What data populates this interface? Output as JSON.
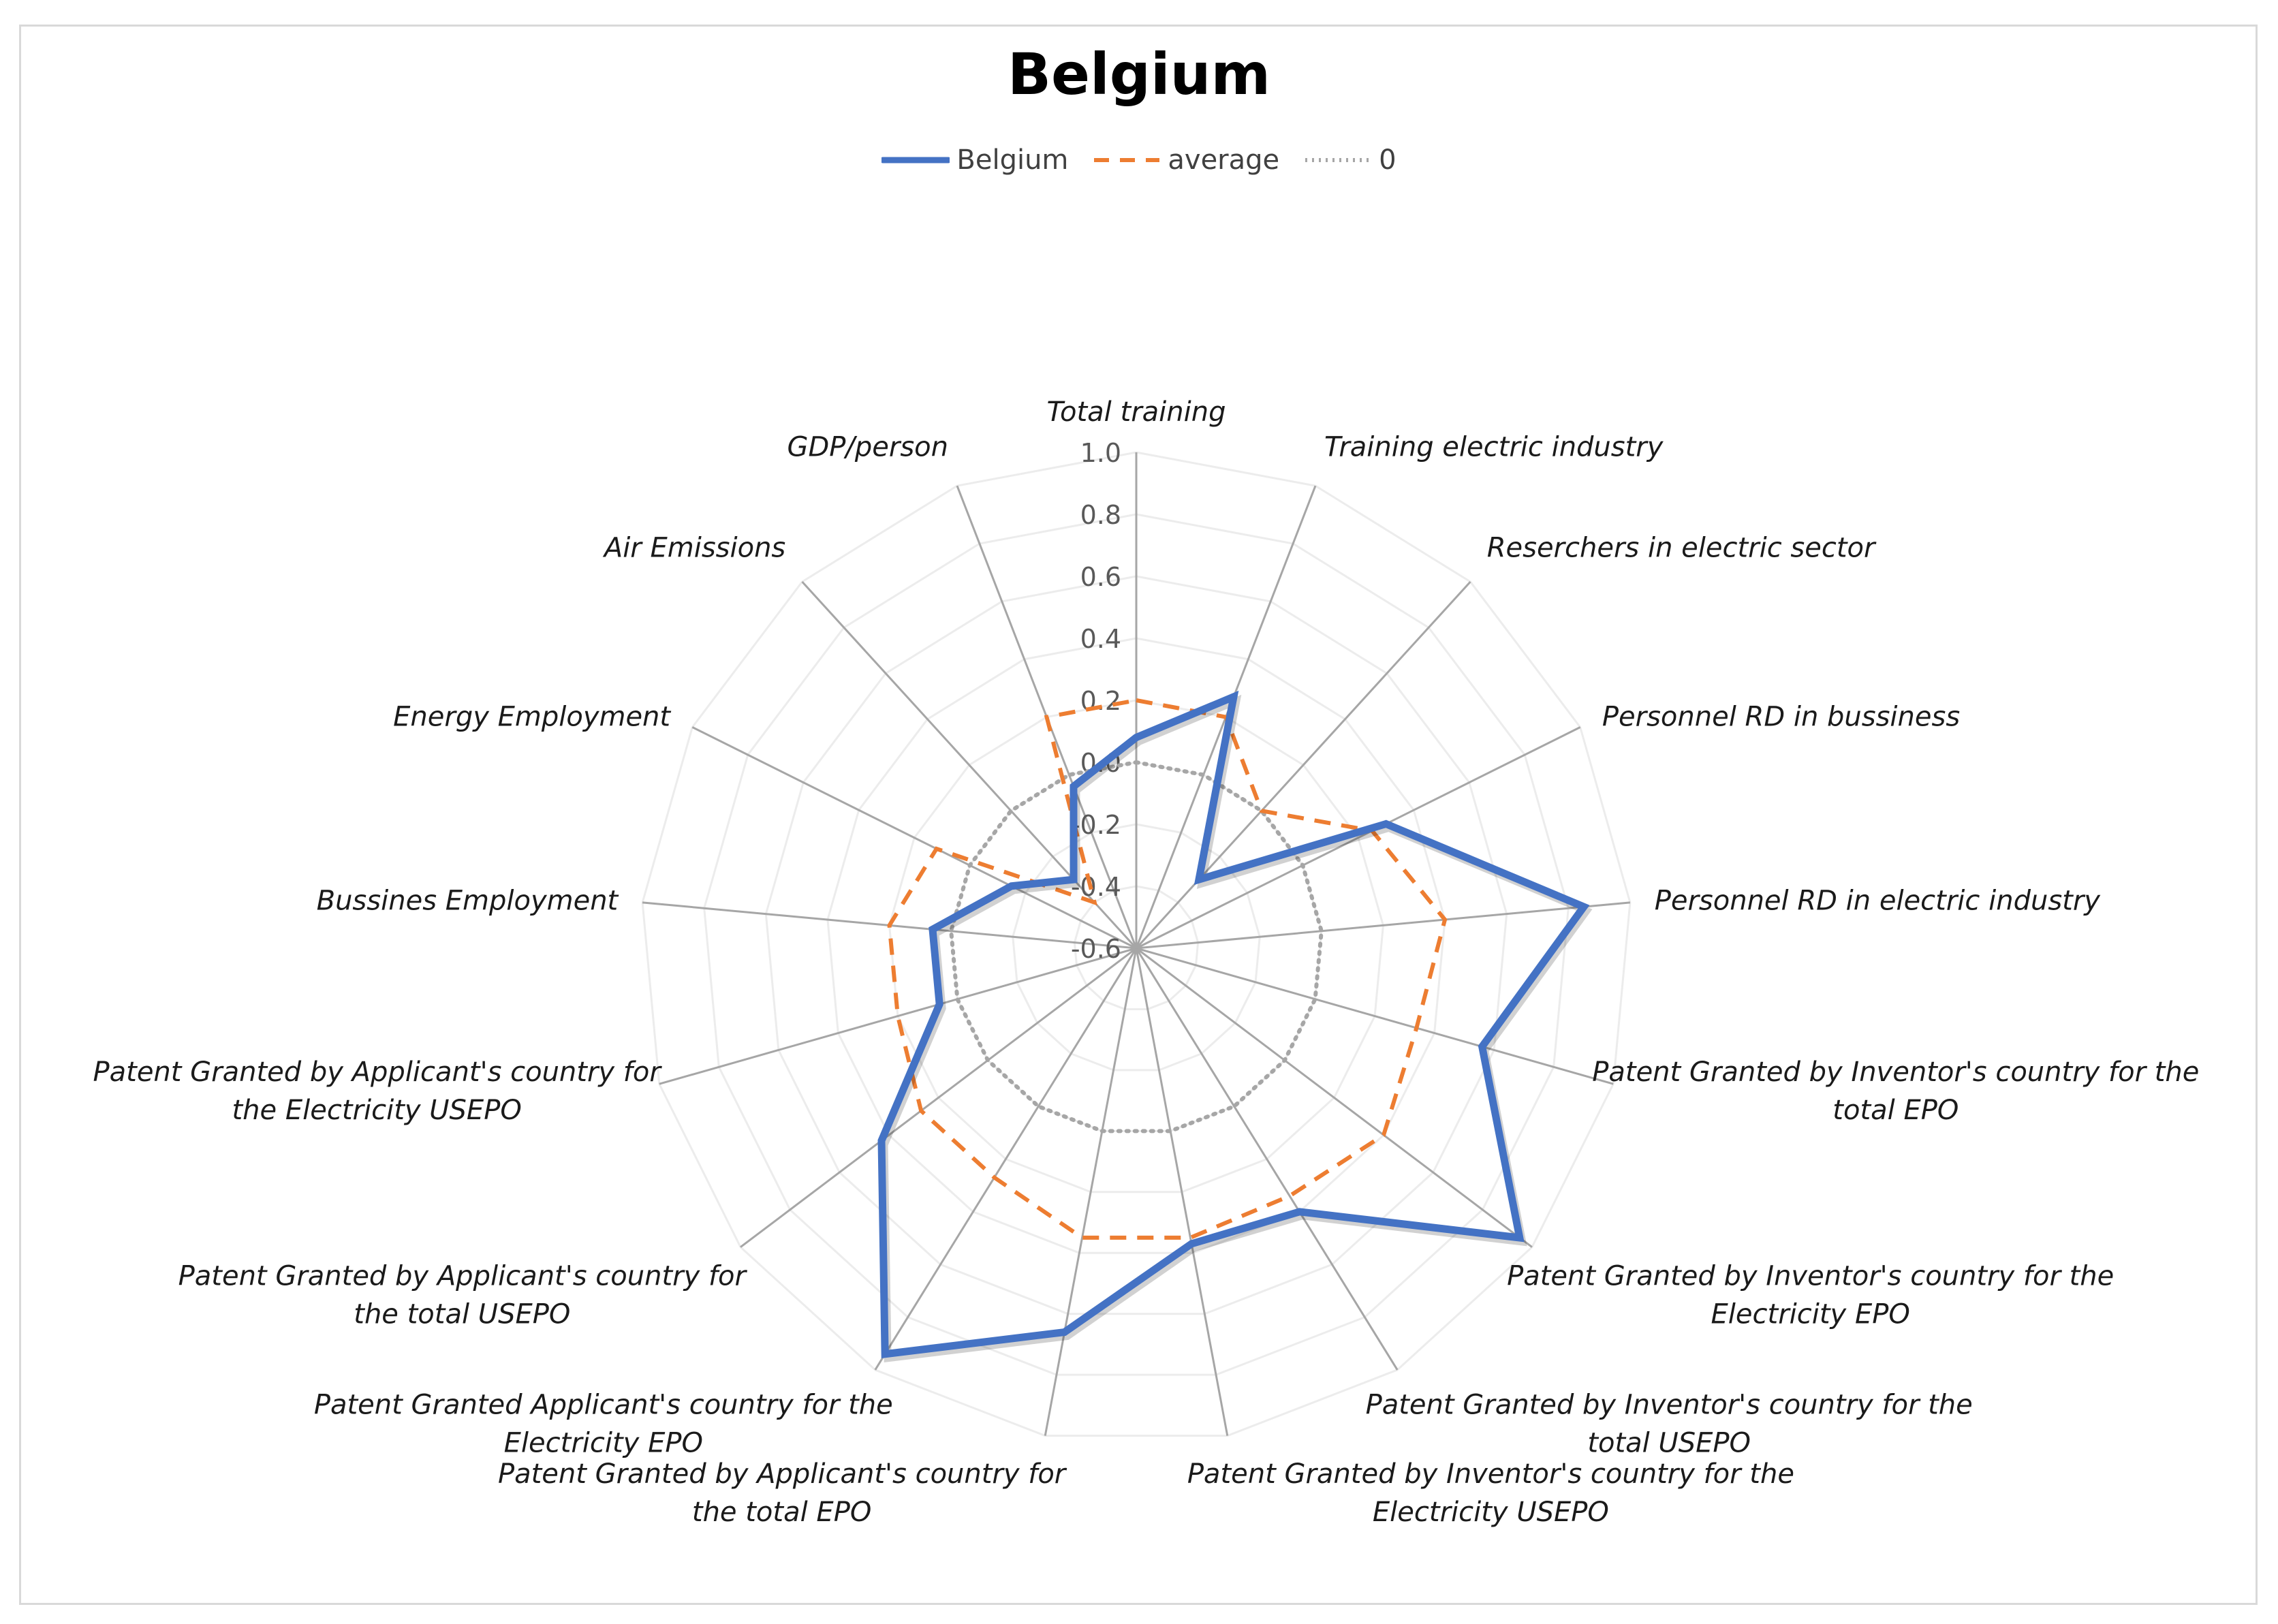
{
  "chart_data": {
    "type": "radar",
    "title": "Belgium",
    "categories": [
      [
        "Total training"
      ],
      [
        "Training electric industry"
      ],
      [
        "Reserchers in electric sector"
      ],
      [
        "Personnel RD in bussiness"
      ],
      [
        "Personnel RD in electric industry"
      ],
      [
        "Patent Granted by Inventor's country for the",
        "total EPO"
      ],
      [
        "Patent Granted by Inventor's country for the",
        "Electricity EPO"
      ],
      [
        "Patent Granted by Inventor's country for the",
        "total USEPO"
      ],
      [
        "Patent Granted by Inventor's country for the",
        "Electricity USEPO"
      ],
      [
        "Patent Granted by Applicant's country for",
        "the total EPO"
      ],
      [
        "Patent Granted Applicant's country for the",
        "Electricity EPO"
      ],
      [
        "Patent Granted by Applicant's country for",
        "the total USEPO"
      ],
      [
        "Patent Granted by Applicant's country for",
        "the Electricity USEPO"
      ],
      [
        "Bussines Employment"
      ],
      [
        "Energy Employment"
      ],
      [
        "Air Emissions"
      ],
      [
        "GDP/person"
      ]
    ],
    "series": [
      {
        "name": "Belgium",
        "color": "#4472c4",
        "style": "solid",
        "values": [
          0.08,
          0.27,
          -0.3,
          0.3,
          0.85,
          0.56,
          0.95,
          0.4,
          0.37,
          0.66,
          0.94,
          0.43,
          0.06,
          0.06,
          -0.15,
          -0.3,
          -0.04
        ]
      },
      {
        "name": "average",
        "color": "#ed7d31",
        "style": "dashed",
        "values": [
          0.2,
          0.2,
          0.0,
          0.25,
          0.4,
          0.34,
          0.4,
          0.34,
          0.35,
          0.35,
          0.27,
          0.27,
          0.2,
          0.2,
          0.12,
          -0.4,
          0.2
        ]
      },
      {
        "name": "0",
        "color": "#a6a6a6",
        "style": "dotted",
        "values": [
          0,
          0,
          0,
          0,
          0,
          0,
          0,
          0,
          0,
          0,
          0,
          0,
          0,
          0,
          0,
          0,
          0
        ]
      }
    ],
    "rlim": [
      -0.6,
      1.0
    ],
    "ticks": [
      "1.0",
      "0.8",
      "0.6",
      "0.4",
      "0.2",
      "0.0",
      "-0.2",
      "-0.4",
      "-0.6"
    ],
    "tick_values": [
      1.0,
      0.8,
      0.6,
      0.4,
      0.2,
      0.0,
      -0.2,
      -0.4,
      -0.6
    ],
    "legend_position": "top",
    "grid": true
  }
}
